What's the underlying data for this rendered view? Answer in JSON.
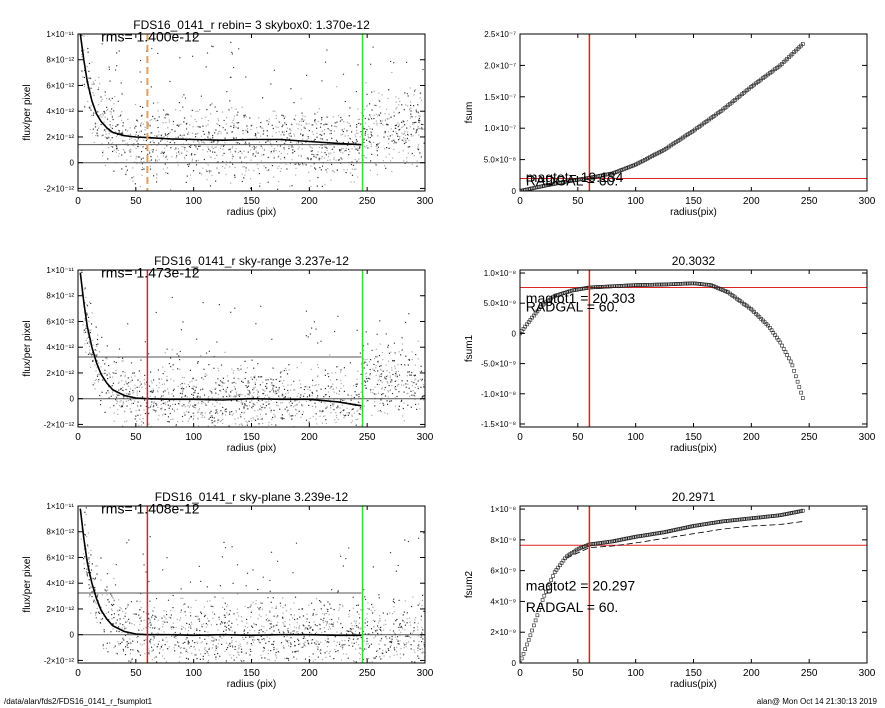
{
  "footer": {
    "left": "/data/alan/fds2/FDS16_0141_r_fsumplot1",
    "right": "alan@  Mon Oct 14 21:30:13 2019"
  },
  "chart_data": [
    {
      "type": "scatter",
      "title": "FDS16_0141_r rebin= 3    skybox0:  1.370e-12",
      "xlabel": "radius (pix)",
      "ylabel": "flux/per pixel",
      "xlim": [
        0,
        300
      ],
      "ylim": [
        -2.2e-12,
        1e-11
      ],
      "xticks": [
        0,
        50,
        100,
        150,
        200,
        250,
        300
      ],
      "yticks": [
        -2e-12,
        0,
        2e-12,
        4e-12,
        6e-12,
        8e-12,
        1e-11
      ],
      "ytick_labels": [
        "-2×10⁻¹²",
        "0",
        "2×10⁻¹²",
        "4×10⁻¹²",
        "6×10⁻¹²",
        "8×10⁻¹²",
        "1×10⁻¹¹"
      ],
      "annotations": [
        {
          "text": "rms= 1.400e-12",
          "x": 20,
          "y": 9.4e-12
        }
      ],
      "profile": [
        [
          2,
          1.02e-11
        ],
        [
          5,
          8e-12
        ],
        [
          8,
          6.3e-12
        ],
        [
          12,
          4.8e-12
        ],
        [
          16,
          3.8e-12
        ],
        [
          20,
          3.2e-12
        ],
        [
          25,
          2.7e-12
        ],
        [
          30,
          2.35e-12
        ],
        [
          40,
          2.1e-12
        ],
        [
          50,
          2e-12
        ],
        [
          60,
          1.95e-12
        ],
        [
          80,
          1.85e-12
        ],
        [
          100,
          1.8e-12
        ],
        [
          125,
          1.75e-12
        ],
        [
          150,
          1.8e-12
        ],
        [
          175,
          1.8e-12
        ],
        [
          200,
          1.65e-12
        ],
        [
          225,
          1.5e-12
        ],
        [
          245,
          1.4e-12
        ]
      ],
      "hlines": [
        {
          "y": 1.4e-12,
          "x_end": 245
        },
        {
          "y": 0,
          "x_end": 300
        }
      ],
      "vlines": [
        {
          "x": 60,
          "color": "#e0a060",
          "dashed": true
        },
        {
          "x": 246,
          "color": "#33dd33"
        }
      ],
      "scatter_bands": [
        {
          "center": 1.5e-12,
          "spread": 2.8e-12,
          "shift_after": 245,
          "center_after": 2.7e-12
        }
      ]
    },
    {
      "type": "scatter",
      "title": "",
      "xlabel": "radius(pix)",
      "ylabel": "fsum",
      "xlim": [
        0,
        300
      ],
      "ylim": [
        0,
        2.5e-07
      ],
      "xticks": [
        0,
        50,
        100,
        150,
        200,
        250,
        300
      ],
      "yticks": [
        0,
        5e-08,
        1e-07,
        1.5e-07,
        2e-07,
        2.5e-07
      ],
      "ytick_labels": [
        "0",
        "5.0×10⁻⁸",
        "1.0×10⁻⁷",
        "1.5×10⁻⁷",
        "2.0×10⁻⁷",
        "2.5×10⁻⁷"
      ],
      "annotations": [
        {
          "text": "magtot= 19.134",
          "x": 5,
          "y": 1.4e-08
        },
        {
          "text": "RADGAL =    60.",
          "x": 5,
          "y": 9e-09
        }
      ],
      "curve": [
        [
          0,
          0
        ],
        [
          20,
          8e-09
        ],
        [
          40,
          1.5e-08
        ],
        [
          60,
          2.1e-08
        ],
        [
          80,
          2.8e-08
        ],
        [
          100,
          4.2e-08
        ],
        [
          125,
          6.6e-08
        ],
        [
          150,
          9.6e-08
        ],
        [
          175,
          1.29e-07
        ],
        [
          200,
          1.66e-07
        ],
        [
          225,
          2e-07
        ],
        [
          245,
          2.35e-07
        ]
      ],
      "hlines": [
        {
          "y": 2e-08,
          "color": "#dd2222"
        }
      ],
      "vlines": [
        {
          "x": 60,
          "color": "#dd2222"
        }
      ]
    },
    {
      "type": "scatter",
      "title": "FDS16_0141_r sky-range  3.237e-12",
      "xlabel": "radius (pix)",
      "ylabel": "flux/per pixel",
      "xlim": [
        0,
        300
      ],
      "ylim": [
        -2.2e-12,
        1e-11
      ],
      "xticks": [
        0,
        50,
        100,
        150,
        200,
        250,
        300
      ],
      "yticks": [
        -2e-12,
        0,
        2e-12,
        4e-12,
        6e-12,
        8e-12,
        1e-11
      ],
      "ytick_labels": [
        "-2×10⁻¹²",
        "0",
        "2×10⁻¹²",
        "4×10⁻¹²",
        "6×10⁻¹²",
        "8×10⁻¹²",
        "1×10⁻¹¹"
      ],
      "annotations": [
        {
          "text": "rms= 1.473e-12",
          "x": 20,
          "y": 9.4e-12
        }
      ],
      "profile": [
        [
          2,
          9.8e-12
        ],
        [
          5,
          7.5e-12
        ],
        [
          8,
          5.6e-12
        ],
        [
          12,
          4e-12
        ],
        [
          16,
          2.8e-12
        ],
        [
          20,
          1.9e-12
        ],
        [
          25,
          1.2e-12
        ],
        [
          30,
          7e-13
        ],
        [
          40,
          2.5e-13
        ],
        [
          50,
          5e-14
        ],
        [
          60,
          0
        ],
        [
          80,
          -5e-14
        ],
        [
          100,
          -5e-14
        ],
        [
          125,
          -1e-13
        ],
        [
          150,
          0
        ],
        [
          175,
          -5e-14
        ],
        [
          200,
          -5e-14
        ],
        [
          225,
          -2.5e-13
        ],
        [
          245,
          -5.5e-13
        ]
      ],
      "hlines": [
        {
          "y": 3.237e-12,
          "x_end": 245
        },
        {
          "y": 0,
          "x_end": 300
        }
      ],
      "vlines": [
        {
          "x": 60,
          "color": "#dd2222"
        },
        {
          "x": 246,
          "color": "#33dd33"
        }
      ],
      "scatter_bands": [
        {
          "center": 0,
          "spread": 2.6e-12,
          "shift_after": 245,
          "center_after": 1.4e-12
        }
      ]
    },
    {
      "type": "scatter",
      "title": "20.3032",
      "xlabel": "radius(pix)",
      "ylabel": "fsum1",
      "xlim": [
        0,
        300
      ],
      "ylim": [
        -1.55e-08,
        1.05e-08
      ],
      "xticks": [
        0,
        50,
        100,
        150,
        200,
        250,
        300
      ],
      "yticks": [
        -1.5e-08,
        -1e-08,
        -5e-09,
        0,
        5e-09,
        1e-08
      ],
      "ytick_labels": [
        "-1.5×10⁻⁸",
        "-1.0×10⁻⁸",
        "-5.0×10⁻⁹",
        "0",
        "5.0×10⁻⁹",
        "1.0×10⁻⁸"
      ],
      "annotations": [
        {
          "text": "magtot1 =  20.303",
          "x": 5,
          "y": 5e-09
        },
        {
          "text": "RADGAL =    60.",
          "x": 5,
          "y": 3.6e-09
        }
      ],
      "curve": [
        [
          0,
          0
        ],
        [
          10,
          2.5e-09
        ],
        [
          20,
          4.8e-09
        ],
        [
          30,
          6.2e-09
        ],
        [
          45,
          7.1e-09
        ],
        [
          60,
          7.6e-09
        ],
        [
          80,
          7.8e-09
        ],
        [
          100,
          8e-09
        ],
        [
          125,
          8.1e-09
        ],
        [
          150,
          8.3e-09
        ],
        [
          165,
          8e-09
        ],
        [
          180,
          6.8e-09
        ],
        [
          200,
          4e-09
        ],
        [
          215,
          1.2e-09
        ],
        [
          225,
          -1.5e-09
        ],
        [
          235,
          -5e-09
        ],
        [
          245,
          -1.1e-08
        ]
      ],
      "hlines": [
        {
          "y": 7.6e-09,
          "color": "#dd2222"
        }
      ],
      "vlines": [
        {
          "x": 60,
          "color": "#dd2222"
        }
      ]
    },
    {
      "type": "scatter",
      "title": "FDS16_0141_r sky-plane  3.239e-12",
      "xlabel": "radius (pix)",
      "ylabel": "flux/per pixel",
      "xlim": [
        0,
        300
      ],
      "ylim": [
        -2.2e-12,
        1e-11
      ],
      "xticks": [
        0,
        50,
        100,
        150,
        200,
        250,
        300
      ],
      "yticks": [
        -2e-12,
        0,
        2e-12,
        4e-12,
        6e-12,
        8e-12,
        1e-11
      ],
      "ytick_labels": [
        "-2×10⁻¹²",
        "0",
        "2×10⁻¹²",
        "4×10⁻¹²",
        "6×10⁻¹²",
        "8×10⁻¹²",
        "1×10⁻¹¹"
      ],
      "annotations": [
        {
          "text": "rms= 1.408e-12",
          "x": 20,
          "y": 9.4e-12
        }
      ],
      "profile": [
        [
          2,
          9.8e-12
        ],
        [
          5,
          7.5e-12
        ],
        [
          8,
          5.6e-12
        ],
        [
          12,
          4e-12
        ],
        [
          16,
          2.8e-12
        ],
        [
          20,
          1.9e-12
        ],
        [
          25,
          1.2e-12
        ],
        [
          30,
          7e-13
        ],
        [
          40,
          2.5e-13
        ],
        [
          50,
          5e-14
        ],
        [
          60,
          0
        ],
        [
          80,
          0
        ],
        [
          100,
          -5e-14
        ],
        [
          125,
          0
        ],
        [
          150,
          -5e-14
        ],
        [
          175,
          0
        ],
        [
          200,
          0
        ],
        [
          225,
          -5e-14
        ],
        [
          245,
          -5e-14
        ]
      ],
      "hlines": [
        {
          "y": 3.239e-12,
          "x_end": 245
        },
        {
          "y": 0,
          "x_end": 300
        }
      ],
      "vlines": [
        {
          "x": 60,
          "color": "#dd2222"
        },
        {
          "x": 246,
          "color": "#33dd33"
        }
      ],
      "scatter_bands": [
        {
          "center": 0,
          "spread": 2.6e-12,
          "shift_after": 245,
          "center_after": 0
        }
      ]
    },
    {
      "type": "scatter",
      "title": "20.2971",
      "xlabel": "radius(pix)",
      "ylabel": "fsum2",
      "xlim": [
        0,
        300
      ],
      "ylim": [
        0,
        1.02e-08
      ],
      "xticks": [
        0,
        50,
        100,
        150,
        200,
        250,
        300
      ],
      "yticks": [
        0,
        2e-09,
        4e-09,
        6e-09,
        8e-09,
        1e-08
      ],
      "ytick_labels": [
        "0",
        "2×10⁻⁹",
        "4×10⁻⁹",
        "6×10⁻⁹",
        "8×10⁻⁹",
        "1×10⁻⁸"
      ],
      "annotations": [
        {
          "text": "magtot2 =  20.297",
          "x": 5,
          "y": 4.7e-09
        },
        {
          "text": "RADGAL =    60.",
          "x": 5,
          "y": 3.3e-09
        }
      ],
      "curve": [
        [
          0,
          0
        ],
        [
          10,
          2e-09
        ],
        [
          20,
          4.2e-09
        ],
        [
          30,
          5.9e-09
        ],
        [
          40,
          6.9e-09
        ],
        [
          50,
          7.4e-09
        ],
        [
          60,
          7.7e-09
        ],
        [
          80,
          7.9e-09
        ],
        [
          100,
          8.2e-09
        ],
        [
          125,
          8.5e-09
        ],
        [
          150,
          8.9e-09
        ],
        [
          175,
          9.2e-09
        ],
        [
          200,
          9.4e-09
        ],
        [
          225,
          9.6e-09
        ],
        [
          245,
          9.9e-09
        ]
      ],
      "curve_dashed": [
        [
          40,
          6.8e-09
        ],
        [
          60,
          7.5e-09
        ],
        [
          80,
          7.6e-09
        ],
        [
          100,
          7.8e-09
        ],
        [
          125,
          8.1e-09
        ],
        [
          150,
          8.4e-09
        ],
        [
          175,
          8.7e-09
        ],
        [
          200,
          8.9e-09
        ],
        [
          225,
          9e-09
        ],
        [
          245,
          9.2e-09
        ]
      ],
      "hlines": [
        {
          "y": 7.65e-09,
          "color": "#dd2222"
        }
      ],
      "vlines": [
        {
          "x": 60,
          "color": "#dd2222"
        }
      ]
    }
  ]
}
